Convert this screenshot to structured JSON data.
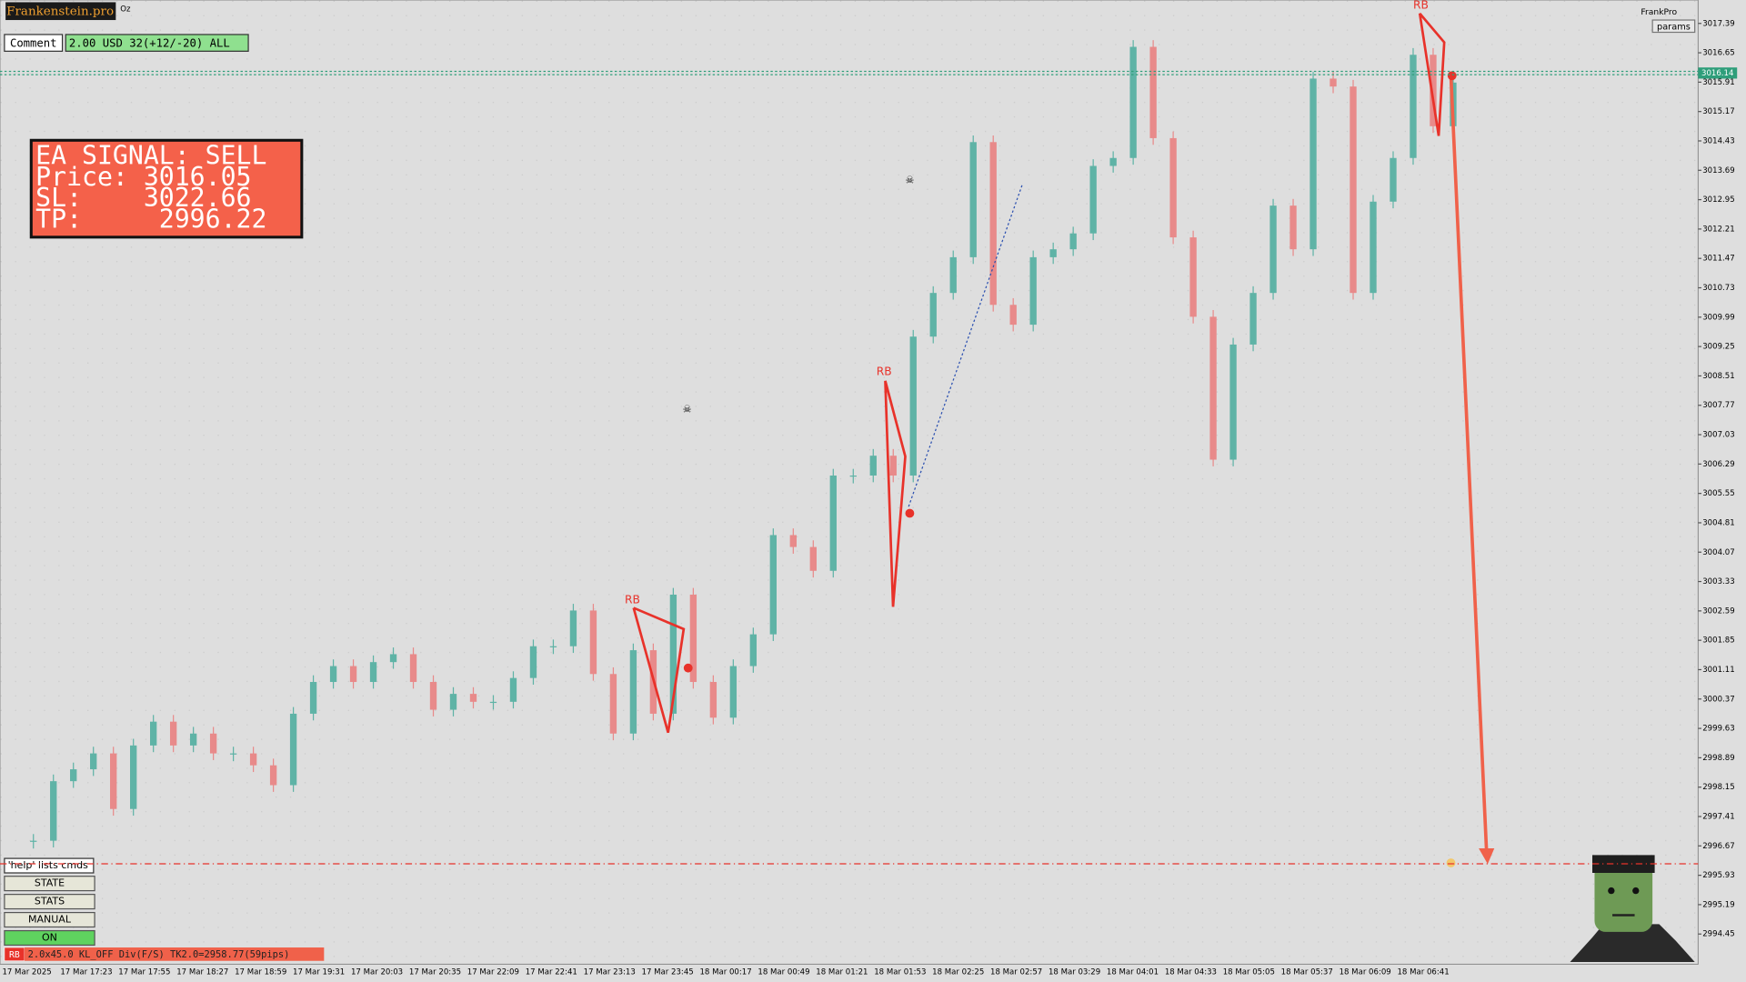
{
  "header": {
    "brand": "Frankenstein.pro",
    "symbol_tag": "Oz",
    "account_label": "FrankPro",
    "params_button": "params"
  },
  "comment": {
    "label": "Comment",
    "value": "2.00 USD 32(+12/-20) ALL"
  },
  "signal_box": {
    "lines": [
      "EA SIGNAL: SELL",
      "Price: 3016.05",
      "SL:    3022.66",
      "TP:     2996.22"
    ]
  },
  "controls": {
    "help": "'help' lists cmds",
    "buttons": [
      "STATE",
      "STATS",
      "MANUAL",
      "ON"
    ]
  },
  "status_bar": {
    "tag": "RB",
    "text": "2.0x45.0 KL_OFF Div(F/S) TK2.0=2958.77(59pips)"
  },
  "chart_data": {
    "type": "candlestick",
    "ylim": [
      2993.69,
      3017.98
    ],
    "yticks": [
      3017.39,
      3016.65,
      3015.91,
      3015.17,
      3014.43,
      3013.69,
      3012.95,
      3012.21,
      3011.47,
      3010.73,
      3009.99,
      3009.25,
      3008.51,
      3007.77,
      3007.03,
      3006.29,
      3005.55,
      3004.81,
      3004.07,
      3003.33,
      3002.59,
      3001.85,
      3001.11,
      3000.37,
      2999.63,
      2998.89,
      2998.15,
      2997.41,
      2996.67,
      2995.93,
      2995.19,
      2994.45
    ],
    "categories": [
      "17 Mar 2025",
      "17 Mar 17:23",
      "17 Mar 17:55",
      "17 Mar 18:27",
      "17 Mar 18:59",
      "17 Mar 19:31",
      "17 Mar 20:03",
      "17 Mar 20:35",
      "17 Mar 22:09",
      "17 Mar 22:41",
      "17 Mar 23:13",
      "17 Mar 23:45",
      "18 Mar 00:17",
      "18 Mar 00:49",
      "18 Mar 01:21",
      "18 Mar 01:53",
      "18 Mar 02:25",
      "18 Mar 02:57",
      "18 Mar 03:29",
      "18 Mar 04:01",
      "18 Mar 04:33",
      "18 Mar 05:05",
      "18 Mar 05:37",
      "18 Mar 06:09",
      "18 Mar 06:41"
    ],
    "closes": [
      2996.8,
      2998.3,
      2998.6,
      2999.0,
      2997.6,
      2999.2,
      2999.8,
      2999.2,
      2999.5,
      2999.0,
      2999.0,
      2998.7,
      2998.2,
      3000.0,
      3000.8,
      3001.2,
      3000.8,
      3001.3,
      3001.5,
      3000.8,
      3000.1,
      3000.5,
      3000.3,
      3000.3,
      3000.9,
      3001.7,
      3001.7,
      3002.6,
      3001.0,
      2999.5,
      3001.6,
      3000.0,
      3003.0,
      3000.8,
      2999.9,
      3001.2,
      3002.0,
      3004.5,
      3004.2,
      3003.6,
      3006.0,
      3006.0,
      3006.5,
      3006.0,
      3009.5,
      3010.6,
      3011.5,
      3014.4,
      3010.3,
      3009.8,
      3011.5,
      3011.7,
      3012.1,
      3013.8,
      3014.0,
      3016.8,
      3014.5,
      3012.0,
      3010.0,
      3006.4,
      3009.3,
      3010.6,
      3012.8,
      3011.7,
      3016.0,
      3015.8,
      3010.6,
      3012.9,
      3014.0,
      3016.6,
      3014.8,
      3015.9
    ],
    "up_color": "#5fb3a6",
    "down_color": "#e88a8a",
    "current_price": {
      "value": 3016.14,
      "color": "#2e9e7a"
    },
    "tp_level": {
      "value": 2996.22,
      "color": "#e8322a"
    },
    "pattern_labels": [
      "RB",
      "RB",
      "RB"
    ]
  }
}
